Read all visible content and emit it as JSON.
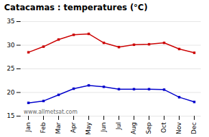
{
  "chart_data": {
    "type": "line",
    "title": "Catacamas : temperatures (°C)",
    "categories": [
      "Jan",
      "Feb",
      "Mar",
      "Apr",
      "May",
      "Jun",
      "Jul",
      "Aug",
      "Sep",
      "Oct",
      "Nov",
      "Dec"
    ],
    "series": [
      {
        "color": "#cc0000",
        "marker": "square",
        "values": [
          28.5,
          29.7,
          31.2,
          32.2,
          32.4,
          30.5,
          29.6,
          30.1,
          30.2,
          30.5,
          29.2,
          28.4
        ]
      },
      {
        "color": "#0000cc",
        "marker": "square",
        "values": [
          17.8,
          18.2,
          19.5,
          20.8,
          21.5,
          21.2,
          20.7,
          20.7,
          20.7,
          20.6,
          19.0,
          18.0
        ]
      }
    ],
    "ylim": [
      15,
      35
    ],
    "yticks": [
      15,
      20,
      25,
      30,
      35
    ],
    "grid": true,
    "annotations": [
      "www.allmetsat.com"
    ]
  }
}
